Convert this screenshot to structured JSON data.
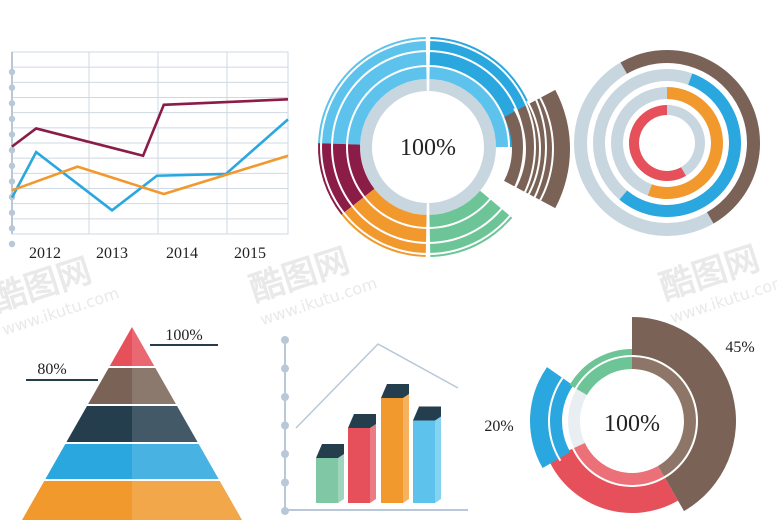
{
  "colors": {
    "maroon": "#8a1c47",
    "blue": "#2aa7df",
    "lightblue": "#5ec3ec",
    "orange": "#f2992e",
    "brown": "#7a6356",
    "green": "#6cc497",
    "grey": "#c8d6df",
    "red": "#e6505a",
    "navy": "#253e4e",
    "greengrey": "#7fc7a5",
    "gridline": "#cfd8e3",
    "axis": "#b9c8d8"
  },
  "watermarks": [
    {
      "logo": "酷图网",
      "url": "www.ikutu.com"
    }
  ],
  "chart_data": [
    {
      "type": "line",
      "categories": [
        "2012",
        "2013",
        "2014",
        "2015"
      ],
      "series": [
        {
          "color": "#8a1c47",
          "values": [
            [
              0,
              48
            ],
            [
              0.35,
              58
            ],
            [
              1.9,
              43
            ],
            [
              2.2,
              71
            ],
            [
              4.0,
              74
            ]
          ]
        },
        {
          "color": "#2aa7df",
          "values": [
            [
              0,
              20
            ],
            [
              0.35,
              45
            ],
            [
              1.45,
              13
            ],
            [
              2.1,
              32
            ],
            [
              3.1,
              33
            ],
            [
              4.0,
              63
            ]
          ]
        },
        {
          "color": "#f2992e",
          "values": [
            [
              0,
              24
            ],
            [
              0.95,
              37
            ],
            [
              2.2,
              22
            ],
            [
              4.0,
              43
            ]
          ]
        }
      ],
      "ylim": [
        0,
        100
      ],
      "grid": true
    },
    {
      "type": "pie",
      "center_label": "100%",
      "rings": 3,
      "segments": [
        {
          "color": "#2aa7df",
          "value": 25
        },
        {
          "color": "#7a6356",
          "value": 12
        },
        {
          "color": "#6cc497",
          "value": 13
        },
        {
          "color": "#f2992e",
          "value": 13
        },
        {
          "color": "#8a1c47",
          "value": 13
        },
        {
          "color": "#5ec3ec",
          "value": 12
        },
        {
          "color": "#c8d6df",
          "value": 12
        }
      ]
    },
    {
      "type": "pie",
      "rings": [
        {
          "color": "#7a6356",
          "value": 40
        },
        {
          "color": "#2aa7df",
          "value": 55
        },
        {
          "color": "#f2992e",
          "value": 55
        },
        {
          "color": "#e6505a",
          "value": 45
        }
      ]
    },
    {
      "type": "pie",
      "labels": [
        {
          "text": "100%",
          "position": "top-right"
        },
        {
          "text": "80%",
          "position": "left"
        }
      ],
      "layers": [
        "#e6505a",
        "#7a6356",
        "#253e4e",
        "#2aa7df",
        "#f2992e"
      ]
    },
    {
      "type": "bar",
      "values": [
        30,
        50,
        70,
        55
      ],
      "colors": [
        "#7fc7a5",
        "#e6505a",
        "#f2992e",
        "#5ec3ec"
      ],
      "ylim": [
        0,
        100
      ]
    },
    {
      "type": "pie",
      "center_label": "100%",
      "segments": [
        {
          "label": "45%",
          "color": "#7a6356",
          "value": 45
        },
        {
          "label": "",
          "color": "#e6505a",
          "value": 25
        },
        {
          "label": "20%",
          "color": "#2aa7df",
          "value": 20
        },
        {
          "label": "",
          "color": "#6cc497",
          "value": 10
        }
      ]
    }
  ]
}
